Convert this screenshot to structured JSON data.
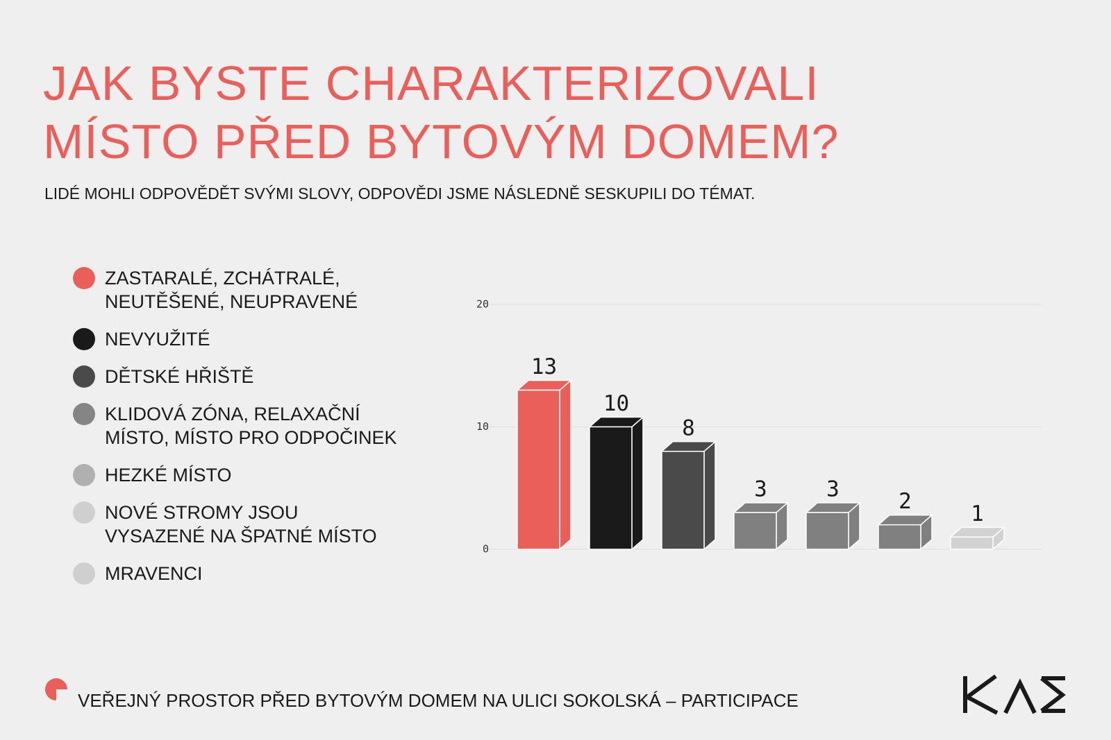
{
  "chart_data": {
    "type": "bar3d",
    "title": "JAK BYSTE CHARAKTERIZOVALI\nMÍSTO PŘED BYTOVÝM DOMEM?",
    "subtitle": "LIDÉ MOHLI ODPOVĚDĚT SVÝMI SLOVY, ODPOVĚDI JSME NÁSLEDNĚ SESKUPILI DO TÉMAT.",
    "categories": [
      "ZASTARALÉ, ZCHÁTRALÉ,\nNEUTĚŠENÉ, NEUPRAVENÉ",
      "NEVYUŽITÉ",
      "DĚTSKÉ HŘIŠTĚ",
      "KLIDOVÁ ZÓNA, RELAXAČNÍ\nMÍSTO, MÍSTO PRO ODPOČINEK",
      "HEZKÉ MÍSTO",
      "NOVÉ STROMY JSOU\nVYSAZENÉ NA ŠPATNÉ MÍSTO",
      "MRAVENCI"
    ],
    "values": [
      13,
      10,
      8,
      3,
      3,
      2,
      1
    ],
    "colors": [
      "#eb5f5a",
      "#1a1a1a",
      "#4a4a4a",
      "#808080",
      "#808080",
      "#808080",
      "#d2d2d2"
    ],
    "legend_colors": [
      "#eb5f5a",
      "#1a1a1a",
      "#4a4a4a",
      "#858585",
      "#b0b0b0",
      "#cfcfcf",
      "#cfcfcf"
    ],
    "ylim": [
      0,
      20
    ],
    "yticks": [
      0,
      10,
      20
    ],
    "grid": true,
    "footer": "VEŘEJNÝ PROSTOR PŘED BYTOVÝM DOMEM NA ULICI SOKOLSKÁ – PARTICIPACE"
  }
}
